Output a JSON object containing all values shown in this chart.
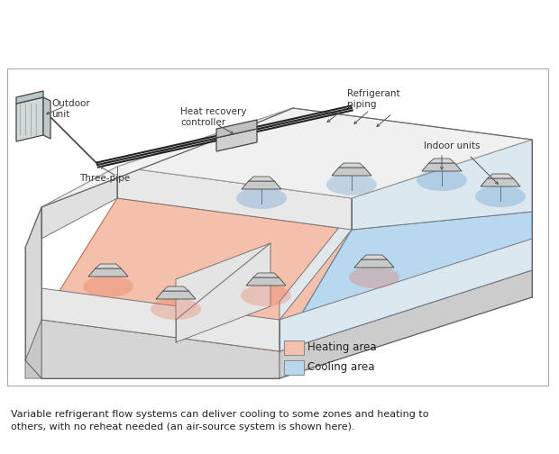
{
  "background_color": "#ffffff",
  "heating_color": "#f4c0ab",
  "cooling_color": "#b8d8f0",
  "wall_light": "#ececec",
  "wall_mid": "#e0e0e0",
  "wall_dark": "#d0d0d0",
  "wall_edge": "#888888",
  "pipe_color": "#333333",
  "unit_top": "#d8d8d8",
  "unit_body": "#c8c8c8",
  "heating_glow": "#e87050",
  "cooling_glow": "#5090c8",
  "label_color": "#333333",
  "arrow_color": "#555555",
  "legend_heat_color": "#f4c0ab",
  "legend_cool_color": "#b8d8f0",
  "legend_edge": "#888888",
  "caption_text": "Variable refrigerant flow systems can deliver cooling to some zones and heating to\nothers, with no reheat needed (an air-source system is shown here).",
  "labels": {
    "outdoor_unit": "Outdoor\nunit",
    "three_pipe": "Three-pipe",
    "heat_recovery": "Heat recovery\ncontroller",
    "refrigerant": "Refrigerant\npiping",
    "indoor_units": "Indoor units",
    "heating_area": "Heating area",
    "cooling_area": "Cooling area"
  },
  "font_size_labels": 7.5,
  "font_size_caption": 8.0,
  "font_size_legend": 8.5
}
